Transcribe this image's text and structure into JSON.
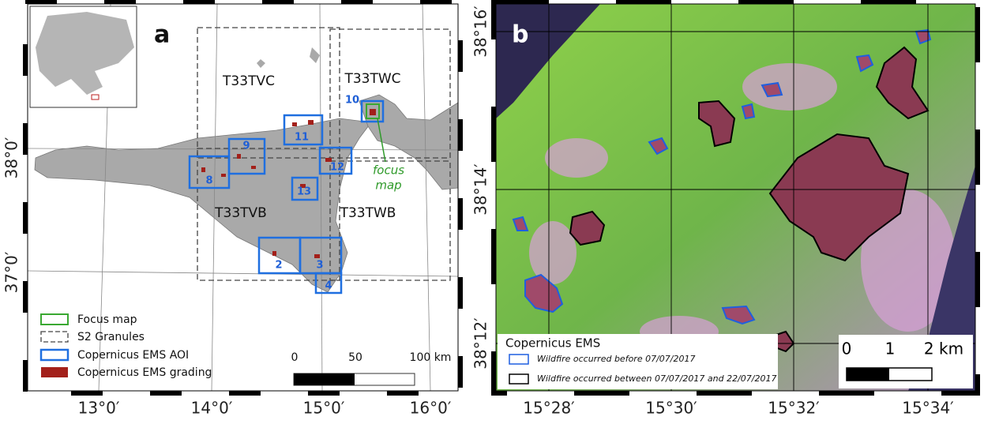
{
  "panel_a": {
    "label": "a",
    "lon_labels": [
      "13°0′",
      "14°0′",
      "15°0′",
      "16°0′"
    ],
    "lat_labels": [
      "38°0′",
      "37°0′"
    ],
    "granules": [
      "T33TVC",
      "T33TWC",
      "T33TVB",
      "T33TWB"
    ],
    "aois": [
      "10",
      "11",
      "9",
      "12",
      "8",
      "13",
      "2",
      "3",
      "4"
    ],
    "focus_annotation": [
      "focus",
      "map"
    ],
    "legend": [
      "Focus map",
      "S2 Granules",
      "Copernicus EMS AOI",
      "Copernicus EMS grading"
    ],
    "scale_labels": [
      "0",
      "50",
      "100 km"
    ]
  },
  "panel_b": {
    "label": "b",
    "lon_labels": [
      "15°28′",
      "15°30′",
      "15°32′",
      "15°34′"
    ],
    "lat_labels": [
      "38°16′",
      "38°14′",
      "38°12′"
    ],
    "legend_title": "Copernicus EMS",
    "legend": [
      "Wildfire occurred before 07/07/2017",
      "Wildfire occurred between 07/07/2017 and 22/07/2017"
    ],
    "scale_labels": [
      "0",
      "1",
      "2 km"
    ]
  }
}
